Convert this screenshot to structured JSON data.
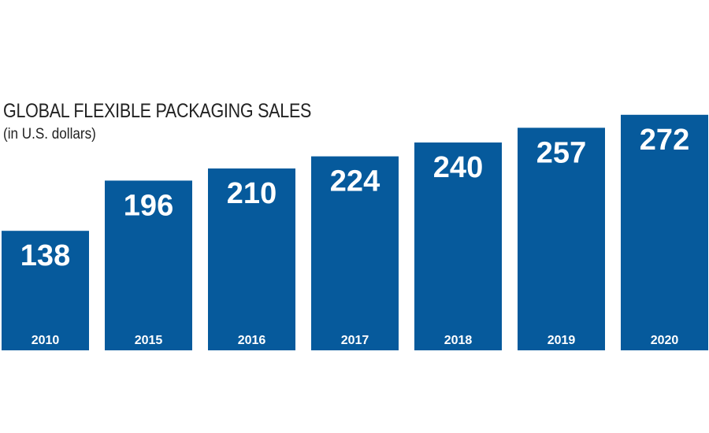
{
  "chart_data": {
    "type": "bar",
    "title": "GLOBAL FLEXIBLE PACKAGING SALES",
    "subtitle": "(in U.S. dollars)",
    "categories": [
      "2010",
      "2015",
      "2016",
      "2017",
      "2018",
      "2019",
      "2020"
    ],
    "values": [
      138,
      196,
      210,
      224,
      240,
      257,
      272
    ],
    "data_labels": [
      "138",
      "196",
      "210",
      "224",
      "240",
      "257",
      "272"
    ],
    "bar_color": "#065a9c",
    "label_color": "#ffffff",
    "grid": false,
    "legend": "none"
  }
}
